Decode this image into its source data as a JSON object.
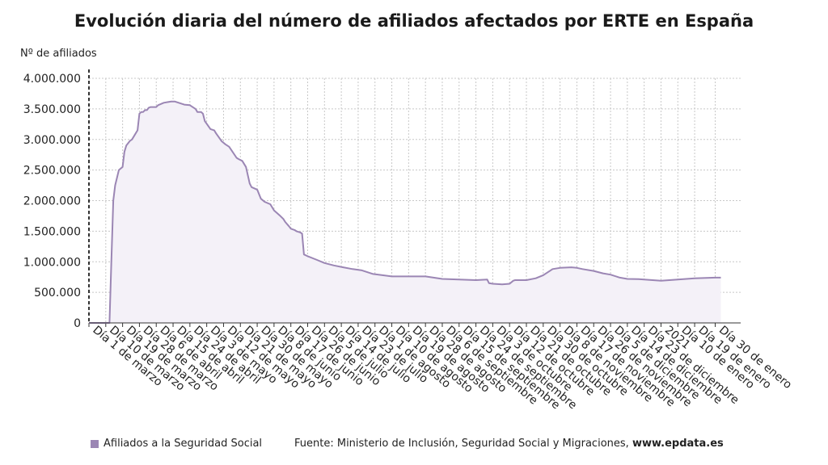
{
  "title": "Evolución diaria del número de afiliados afectados por ERTE en España",
  "footer": {
    "source_prefix": "Fuente: Ministerio de Inclusión, Seguridad Social y Migraciones,",
    "source_site": "www.epdata.es"
  },
  "colors": {
    "series": "#9b86b4",
    "fill": "#f4f1f8",
    "grid": "#c8c8c8",
    "axis": "#333333"
  },
  "chart_data": {
    "type": "area",
    "ylabel": "Nº de afiliados",
    "ylim": [
      0,
      4000000
    ],
    "grid": true,
    "legend_position": "bottom-left",
    "yticks": [
      0,
      500000,
      1000000,
      1500000,
      2000000,
      2500000,
      3000000,
      3500000,
      4000000
    ],
    "ytick_labels": [
      "0",
      "500.000",
      "1.000.000",
      "1.500.000",
      "2.000.000",
      "2.500.000",
      "3.000.000",
      "3.500.000",
      "4.000.000"
    ],
    "xticks": [
      {
        "date": "2020-03-01",
        "label": "Día 1 de marzo"
      },
      {
        "date": "2020-03-10",
        "label": "Día 10 de marzo"
      },
      {
        "date": "2020-03-19",
        "label": "Día 19 de marzo"
      },
      {
        "date": "2020-03-28",
        "label": "Día 28 de marzo"
      },
      {
        "date": "2020-04-06",
        "label": "Día 6 de abril"
      },
      {
        "date": "2020-04-15",
        "label": "Día 15 de abril"
      },
      {
        "date": "2020-04-24",
        "label": "Día 24 de abril"
      },
      {
        "date": "2020-05-03",
        "label": "Día 3 de mayo"
      },
      {
        "date": "2020-05-12",
        "label": "Día 12 de mayo"
      },
      {
        "date": "2020-05-21",
        "label": "Día 21 de mayo"
      },
      {
        "date": "2020-05-30",
        "label": "Día 30 de mayo"
      },
      {
        "date": "2020-06-08",
        "label": "Día 8 de junio"
      },
      {
        "date": "2020-06-17",
        "label": "Día 17 de junio"
      },
      {
        "date": "2020-06-26",
        "label": "Día 26 de junio"
      },
      {
        "date": "2020-07-05",
        "label": "Día 5 de julio"
      },
      {
        "date": "2020-07-14",
        "label": "Día 14 de julio"
      },
      {
        "date": "2020-07-23",
        "label": "Día 23 de julio"
      },
      {
        "date": "2020-08-01",
        "label": "Día 1 de agosto"
      },
      {
        "date": "2020-08-10",
        "label": "Día 10 de agosto"
      },
      {
        "date": "2020-08-19",
        "label": "Día 19 de agosto"
      },
      {
        "date": "2020-08-28",
        "label": "Día 28 de agosto"
      },
      {
        "date": "2020-09-06",
        "label": "Día 6 de septiembre"
      },
      {
        "date": "2020-09-15",
        "label": "Día 15 de septiembre"
      },
      {
        "date": "2020-09-24",
        "label": "Día 24 de septiembre"
      },
      {
        "date": "2020-10-03",
        "label": "Día 3 de octubre"
      },
      {
        "date": "2020-10-12",
        "label": "Día 12 de octubre"
      },
      {
        "date": "2020-10-21",
        "label": "Día 21 de octubre"
      },
      {
        "date": "2020-10-30",
        "label": "Día 30 de octubre"
      },
      {
        "date": "2020-11-08",
        "label": "Día 8 de noviembre"
      },
      {
        "date": "2020-11-17",
        "label": "Día 17 de noviembre"
      },
      {
        "date": "2020-11-26",
        "label": "Día 26 de noviembre"
      },
      {
        "date": "2020-12-05",
        "label": "Día 5 de diciembre"
      },
      {
        "date": "2020-12-14",
        "label": "Día 14 de diciembre"
      },
      {
        "date": "2020-12-23",
        "label": "Día 23 de diciembre"
      },
      {
        "date": "2021-01-01",
        "label": "2021"
      },
      {
        "date": "2021-01-10",
        "label": "Día 10 de enero"
      },
      {
        "date": "2021-01-19",
        "label": "Día 19 de enero"
      },
      {
        "date": "2021-01-30",
        "label": "Día 30 de enero"
      }
    ],
    "series": [
      {
        "name": "Afiliados a la Seguridad Social",
        "x": [
          "2020-03-01",
          "2020-03-12",
          "2020-03-13",
          "2020-03-14",
          "2020-03-15",
          "2020-03-17",
          "2020-03-19",
          "2020-03-20",
          "2020-03-21",
          "2020-03-23",
          "2020-03-24",
          "2020-03-26",
          "2020-03-27",
          "2020-03-28",
          "2020-03-29",
          "2020-03-30",
          "2020-03-31",
          "2020-04-01",
          "2020-04-02",
          "2020-04-03",
          "2020-04-06",
          "2020-04-07",
          "2020-04-10",
          "2020-04-12",
          "2020-04-14",
          "2020-04-16",
          "2020-04-20",
          "2020-04-21",
          "2020-04-24",
          "2020-04-27",
          "2020-04-28",
          "2020-04-30",
          "2020-05-01",
          "2020-05-02",
          "2020-05-05",
          "2020-05-07",
          "2020-05-08",
          "2020-05-11",
          "2020-05-13",
          "2020-05-15",
          "2020-05-19",
          "2020-05-20",
          "2020-05-22",
          "2020-05-24",
          "2020-05-26",
          "2020-05-27",
          "2020-05-30",
          "2020-06-01",
          "2020-06-03",
          "2020-06-06",
          "2020-06-08",
          "2020-06-11",
          "2020-06-13",
          "2020-06-14",
          "2020-06-16",
          "2020-06-17",
          "2020-06-19",
          "2020-06-20",
          "2020-06-22",
          "2020-06-23",
          "2020-06-24",
          "2020-06-26",
          "2020-07-01",
          "2020-07-05",
          "2020-07-10",
          "2020-07-15",
          "2020-07-20",
          "2020-07-25",
          "2020-07-31",
          "2020-08-05",
          "2020-08-10",
          "2020-08-19",
          "2020-08-28",
          "2020-09-06",
          "2020-09-15",
          "2020-09-24",
          "2020-09-30",
          "2020-10-01",
          "2020-10-03",
          "2020-10-08",
          "2020-10-12",
          "2020-10-14",
          "2020-10-15",
          "2020-10-21",
          "2020-10-26",
          "2020-10-30",
          "2020-11-04",
          "2020-11-08",
          "2020-11-14",
          "2020-11-17",
          "2020-11-20",
          "2020-11-26",
          "2020-12-01",
          "2020-12-05",
          "2020-12-10",
          "2020-12-14",
          "2020-12-20",
          "2020-12-23",
          "2021-01-01",
          "2021-01-10",
          "2021-01-19",
          "2021-01-30",
          "2021-02-02"
        ],
        "values": [
          0,
          0,
          1000000,
          2000000,
          2250000,
          2500000,
          2550000,
          2800000,
          2900000,
          2980000,
          3000000,
          3100000,
          3150000,
          3420000,
          3450000,
          3450000,
          3480000,
          3480000,
          3520000,
          3530000,
          3530000,
          3560000,
          3600000,
          3610000,
          3620000,
          3620000,
          3580000,
          3570000,
          3560000,
          3500000,
          3450000,
          3450000,
          3420000,
          3300000,
          3170000,
          3150000,
          3100000,
          2970000,
          2920000,
          2880000,
          2700000,
          2680000,
          2650000,
          2550000,
          2280000,
          2220000,
          2180000,
          2030000,
          1980000,
          1940000,
          1840000,
          1760000,
          1700000,
          1650000,
          1580000,
          1540000,
          1520000,
          1500000,
          1480000,
          1460000,
          1120000,
          1090000,
          1030000,
          980000,
          940000,
          910000,
          880000,
          860000,
          800000,
          780000,
          760000,
          760000,
          760000,
          720000,
          710000,
          700000,
          710000,
          650000,
          640000,
          630000,
          640000,
          690000,
          700000,
          700000,
          730000,
          780000,
          880000,
          900000,
          910000,
          900000,
          880000,
          850000,
          810000,
          790000,
          740000,
          720000,
          715000,
          710000,
          690000,
          710000,
          730000,
          740000,
          740000
        ]
      }
    ]
  }
}
